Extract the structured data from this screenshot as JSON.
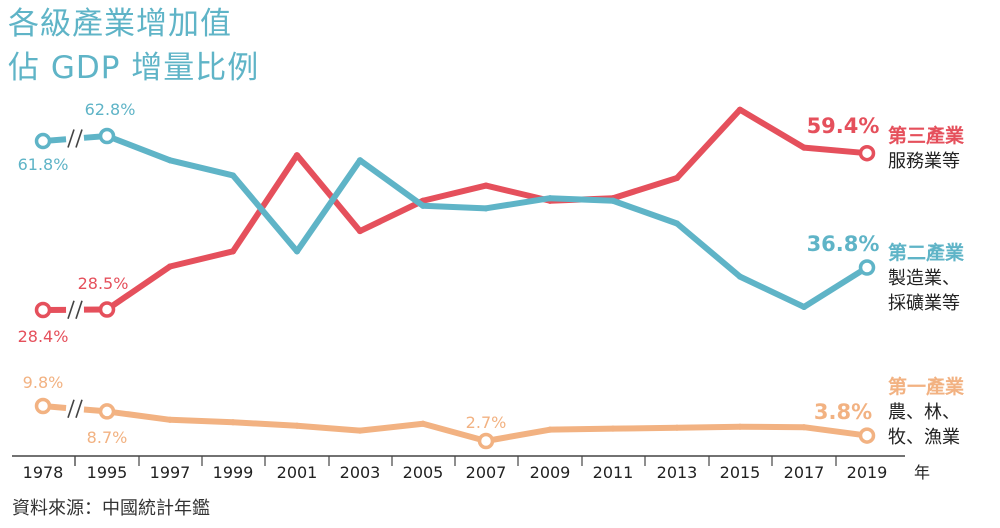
{
  "title_line1": "各級產業增加值",
  "title_line2": "佔 GDP 增量比例",
  "source": "資料來源：中國統計年鑑",
  "x_unit": "年",
  "colors": {
    "tertiary": "#e5505c",
    "secondary": "#5fb4c7",
    "primary": "#f2b282",
    "title": "#5fb4c7"
  },
  "chart_data": {
    "type": "line",
    "x": [
      "1978",
      "1995",
      "1997",
      "1999",
      "2001",
      "2003",
      "2005",
      "2007",
      "2009",
      "2011",
      "2013",
      "2015",
      "2017",
      "2019"
    ],
    "x_unit": "年",
    "axis_break_between": [
      "1978",
      "1995"
    ],
    "series": [
      {
        "name": "第三產業",
        "subtitle": "服務業等",
        "color": "#e5505c",
        "values": [
          28.4,
          28.5,
          37.0,
          40.0,
          59.0,
          44.0,
          50.0,
          53.0,
          50.0,
          50.5,
          54.5,
          68.0,
          60.5,
          59.4
        ],
        "labels": [
          {
            "x": "1978",
            "text": "28.4%"
          },
          {
            "x": "1995",
            "text": "28.5%"
          },
          {
            "x": "2019",
            "text": "59.4%"
          }
        ]
      },
      {
        "name": "第二產業",
        "subtitle_lines": [
          "製造業、",
          "採礦業等"
        ],
        "color": "#5fb4c7",
        "values": [
          61.8,
          62.8,
          58.0,
          55.0,
          40.0,
          58.0,
          49.0,
          48.5,
          50.5,
          50.0,
          45.5,
          35.0,
          29.0,
          36.8
        ],
        "labels": [
          {
            "x": "1978",
            "text": "61.8%"
          },
          {
            "x": "1995",
            "text": "62.8%"
          },
          {
            "x": "2019",
            "text": "36.8%"
          }
        ]
      },
      {
        "name": "第一產業",
        "subtitle_lines": [
          "農、林、",
          "牧、漁業"
        ],
        "color": "#f2b282",
        "values": [
          9.8,
          8.7,
          7.0,
          6.5,
          5.8,
          4.8,
          6.2,
          2.7,
          5.0,
          5.2,
          5.4,
          5.6,
          5.5,
          3.8
        ],
        "labels": [
          {
            "x": "1978",
            "text": "9.8%"
          },
          {
            "x": "1995",
            "text": "8.7%"
          },
          {
            "x": "2007",
            "text": "2.7%"
          },
          {
            "x": "2019",
            "text": "3.8%"
          }
        ]
      }
    ]
  }
}
